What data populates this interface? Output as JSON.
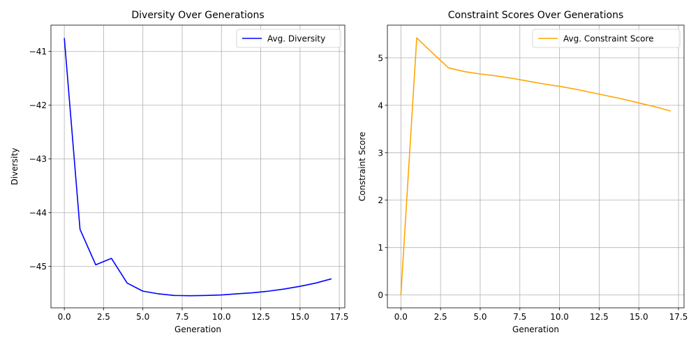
{
  "chart_data": [
    {
      "type": "line",
      "title": "Diversity Over Generations",
      "xlabel": "Generation",
      "ylabel": "Diversity",
      "xlim": [
        -0.85,
        17.85
      ],
      "ylim": [
        -45.77,
        -40.51
      ],
      "xticks": [
        0.0,
        2.5,
        5.0,
        7.5,
        10.0,
        12.5,
        15.0,
        17.5
      ],
      "xtick_labels": [
        "0.0",
        "2.5",
        "5.0",
        "7.5",
        "10.0",
        "12.5",
        "15.0",
        "17.5"
      ],
      "yticks": [
        -41,
        -42,
        -43,
        -44,
        -45
      ],
      "ytick_labels": [
        "−41",
        "−42",
        "−43",
        "−44",
        "−45"
      ],
      "grid": true,
      "legend_position": "upper-right",
      "series": [
        {
          "name": "Avg. Diversity",
          "color": "#0000ff",
          "x": [
            0,
            1,
            2,
            3,
            4,
            5,
            6,
            7,
            8,
            9,
            10,
            11,
            12,
            13,
            14,
            15,
            16,
            17
          ],
          "values": [
            -40.75,
            -44.31,
            -44.97,
            -44.85,
            -45.31,
            -45.46,
            -45.51,
            -45.54,
            -45.545,
            -45.54,
            -45.53,
            -45.51,
            -45.49,
            -45.46,
            -45.42,
            -45.37,
            -45.31,
            -45.23
          ]
        }
      ]
    },
    {
      "type": "line",
      "title": "Constraint Scores Over Generations",
      "xlabel": "Generation",
      "ylabel": "Constraint Score",
      "xlim": [
        -0.85,
        17.85
      ],
      "ylim": [
        -0.27,
        5.69
      ],
      "xticks": [
        0.0,
        2.5,
        5.0,
        7.5,
        10.0,
        12.5,
        15.0,
        17.5
      ],
      "xtick_labels": [
        "0.0",
        "2.5",
        "5.0",
        "7.5",
        "10.0",
        "12.5",
        "15.0",
        "17.5"
      ],
      "yticks": [
        0,
        1,
        2,
        3,
        4,
        5
      ],
      "ytick_labels": [
        "0",
        "1",
        "2",
        "3",
        "4",
        "5"
      ],
      "grid": true,
      "legend_position": "upper-right",
      "series": [
        {
          "name": "Avg. Constraint Score",
          "color": "#ffa500",
          "x": [
            0,
            1,
            2,
            3,
            4,
            5,
            6,
            7,
            8,
            9,
            10,
            11,
            12,
            13,
            14,
            15,
            16,
            17
          ],
          "values": [
            0.0,
            5.42,
            5.1,
            4.79,
            4.71,
            4.66,
            4.62,
            4.57,
            4.51,
            4.45,
            4.4,
            4.34,
            4.27,
            4.2,
            4.13,
            4.05,
            3.97,
            3.88
          ]
        }
      ]
    }
  ]
}
